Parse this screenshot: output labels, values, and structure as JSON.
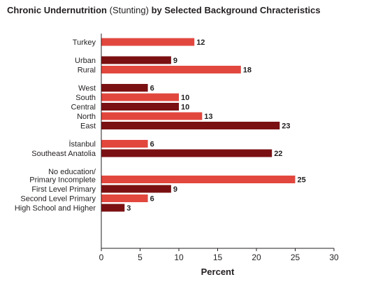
{
  "chart_data": {
    "type": "bar",
    "orientation": "horizontal",
    "title_bold_1": "Chronic Undernutrition",
    "title_normal": " (Stunting)",
    "title_bold_2": " by Selected Background Chracteristics",
    "xlabel": "Percent",
    "xlim": [
      0,
      30
    ],
    "xticks": [
      "0",
      "5",
      "10",
      "15",
      "20",
      "25",
      "30"
    ],
    "grid": false,
    "colors": {
      "light": "#e2473e",
      "dark": "#7b1012"
    },
    "groups": [
      {
        "bars": [
          {
            "lines": [
              "Turkey"
            ],
            "value": 12,
            "shade": "light"
          }
        ]
      },
      {
        "bars": [
          {
            "lines": [
              "Urban"
            ],
            "value": 9,
            "shade": "dark"
          },
          {
            "lines": [
              "Rural"
            ],
            "value": 18,
            "shade": "light"
          }
        ]
      },
      {
        "bars": [
          {
            "lines": [
              "West"
            ],
            "value": 6,
            "shade": "dark"
          },
          {
            "lines": [
              "South"
            ],
            "value": 10,
            "shade": "light"
          },
          {
            "lines": [
              "Central"
            ],
            "value": 10,
            "shade": "dark"
          },
          {
            "lines": [
              "North"
            ],
            "value": 13,
            "shade": "light"
          },
          {
            "lines": [
              "East"
            ],
            "value": 23,
            "shade": "dark"
          }
        ]
      },
      {
        "bars": [
          {
            "lines": [
              "İstanbul"
            ],
            "value": 6,
            "shade": "light"
          },
          {
            "lines": [
              "Southeast Anatolia"
            ],
            "value": 22,
            "shade": "dark"
          }
        ]
      },
      {
        "bars": [
          {
            "lines": [
              "No education/",
              "Primary Incomplete"
            ],
            "value": 25,
            "shade": "light"
          },
          {
            "lines": [
              "First Level Primary"
            ],
            "value": 9,
            "shade": "dark"
          },
          {
            "lines": [
              "Second Level Primary"
            ],
            "value": 6,
            "shade": "light"
          },
          {
            "lines": [
              "High School and Higher"
            ],
            "value": 3,
            "shade": "dark"
          }
        ]
      }
    ]
  }
}
